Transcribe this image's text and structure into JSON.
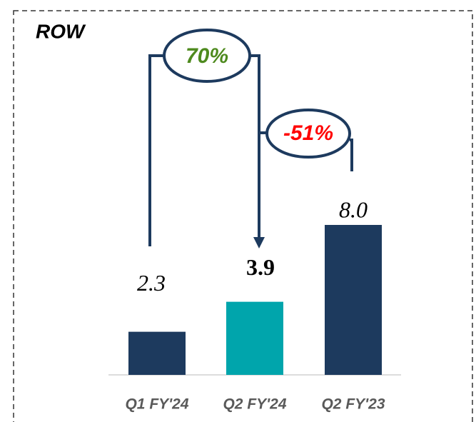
{
  "chart_data": {
    "type": "bar",
    "title": "ROW",
    "categories": [
      "Q1 FY'24",
      "Q2 FY'24",
      "Q2 FY'23"
    ],
    "values": [
      2.3,
      3.9,
      8.0
    ],
    "value_labels": [
      "2.3",
      "3.9",
      "8.0"
    ],
    "colors": [
      "#1d3a5e",
      "#00a5ac",
      "#1d3a5e"
    ],
    "annotations": [
      {
        "text": "70%",
        "color": "#4e8a1e"
      },
      {
        "text": "-51%",
        "color": "#ff0000"
      }
    ]
  }
}
